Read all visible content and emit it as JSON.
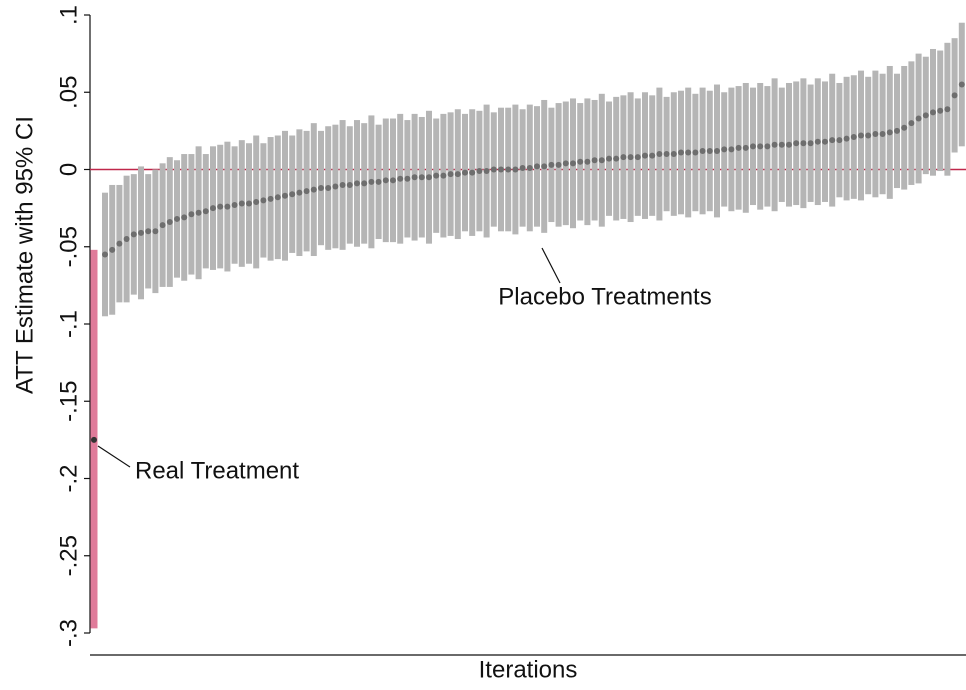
{
  "chart_data": {
    "type": "errorbar",
    "ylabel": "ATT Estimate with 95% CI",
    "xlabel": "Iterations",
    "ylim": [
      -0.3,
      0.1
    ],
    "yticks": [
      {
        "value": 0.1,
        "label": ".1"
      },
      {
        "value": 0.05,
        "label": ".05"
      },
      0,
      {
        "value": -0.05,
        "label": "-.05"
      },
      {
        "value": -0.1,
        "label": "-.1"
      },
      {
        "value": -0.15,
        "label": "-.15"
      },
      {
        "value": -0.2,
        "label": "-.2"
      },
      {
        "value": -0.25,
        "label": "-.25"
      },
      {
        "value": -0.3,
        "label": "-.3"
      }
    ],
    "reference_line": {
      "value": 0,
      "color": "#c0284b"
    },
    "series": [
      {
        "name": "Real Treatment",
        "color": "#333333",
        "bar_color": "#e07b9a",
        "values": [
          -0.175
        ],
        "lower": [
          -0.297
        ],
        "upper": [
          -0.052
        ]
      },
      {
        "name": "Placebo Treatments",
        "color": "#6e6e6e",
        "bar_color": "#b5b5b5",
        "values": [
          -0.055,
          -0.052,
          -0.048,
          -0.045,
          -0.042,
          -0.041,
          -0.04,
          -0.04,
          -0.036,
          -0.034,
          -0.032,
          -0.031,
          -0.029,
          -0.028,
          -0.027,
          -0.025,
          -0.024,
          -0.024,
          -0.023,
          -0.022,
          -0.022,
          -0.021,
          -0.02,
          -0.019,
          -0.018,
          -0.017,
          -0.016,
          -0.015,
          -0.014,
          -0.013,
          -0.012,
          -0.012,
          -0.011,
          -0.01,
          -0.01,
          -0.009,
          -0.009,
          -0.008,
          -0.008,
          -0.007,
          -0.007,
          -0.006,
          -0.006,
          -0.005,
          -0.005,
          -0.005,
          -0.004,
          -0.004,
          -0.003,
          -0.003,
          -0.002,
          -0.002,
          -0.001,
          -0.001,
          0.0,
          0.0,
          0.0,
          0.0,
          0.001,
          0.001,
          0.002,
          0.002,
          0.003,
          0.003,
          0.004,
          0.004,
          0.005,
          0.005,
          0.006,
          0.006,
          0.007,
          0.007,
          0.008,
          0.008,
          0.008,
          0.009,
          0.009,
          0.01,
          0.01,
          0.01,
          0.011,
          0.011,
          0.011,
          0.012,
          0.012,
          0.012,
          0.013,
          0.013,
          0.014,
          0.014,
          0.015,
          0.015,
          0.015,
          0.016,
          0.016,
          0.016,
          0.017,
          0.017,
          0.017,
          0.018,
          0.018,
          0.019,
          0.019,
          0.02,
          0.021,
          0.022,
          0.022,
          0.023,
          0.023,
          0.024,
          0.025,
          0.027,
          0.03,
          0.033,
          0.035,
          0.037,
          0.038,
          0.039,
          0.048,
          0.055
        ],
        "lower": [
          -0.095,
          -0.094,
          -0.086,
          -0.086,
          -0.081,
          -0.084,
          -0.077,
          -0.08,
          -0.076,
          -0.076,
          -0.07,
          -0.072,
          -0.068,
          -0.071,
          -0.064,
          -0.065,
          -0.064,
          -0.066,
          -0.061,
          -0.063,
          -0.061,
          -0.064,
          -0.057,
          -0.059,
          -0.058,
          -0.059,
          -0.054,
          -0.056,
          -0.053,
          -0.056,
          -0.049,
          -0.052,
          -0.051,
          -0.052,
          -0.048,
          -0.05,
          -0.048,
          -0.051,
          -0.045,
          -0.047,
          -0.047,
          -0.048,
          -0.044,
          -0.046,
          -0.044,
          -0.048,
          -0.041,
          -0.044,
          -0.043,
          -0.045,
          -0.04,
          -0.043,
          -0.04,
          -0.044,
          -0.037,
          -0.04,
          -0.04,
          -0.042,
          -0.037,
          -0.04,
          -0.037,
          -0.041,
          -0.034,
          -0.037,
          -0.036,
          -0.038,
          -0.033,
          -0.036,
          -0.033,
          -0.037,
          -0.03,
          -0.033,
          -0.032,
          -0.034,
          -0.03,
          -0.032,
          -0.03,
          -0.033,
          -0.027,
          -0.03,
          -0.029,
          -0.031,
          -0.027,
          -0.029,
          -0.027,
          -0.031,
          -0.024,
          -0.027,
          -0.026,
          -0.028,
          -0.023,
          -0.026,
          -0.024,
          -0.027,
          -0.021,
          -0.024,
          -0.023,
          -0.025,
          -0.021,
          -0.023,
          -0.021,
          -0.024,
          -0.018,
          -0.02,
          -0.019,
          -0.02,
          -0.016,
          -0.018,
          -0.016,
          -0.019,
          -0.012,
          -0.013,
          -0.01,
          -0.009,
          -0.003,
          -0.004,
          -0.001,
          -0.004,
          0.011,
          0.015
        ],
        "upper": [
          -0.015,
          -0.01,
          -0.01,
          -0.004,
          -0.003,
          0.002,
          -0.003,
          0.0,
          0.004,
          0.008,
          0.006,
          0.01,
          0.01,
          0.015,
          0.01,
          0.015,
          0.016,
          0.018,
          0.015,
          0.019,
          0.017,
          0.022,
          0.017,
          0.021,
          0.022,
          0.025,
          0.022,
          0.026,
          0.025,
          0.03,
          0.025,
          0.028,
          0.029,
          0.032,
          0.028,
          0.032,
          0.03,
          0.035,
          0.029,
          0.033,
          0.033,
          0.036,
          0.032,
          0.036,
          0.034,
          0.038,
          0.033,
          0.036,
          0.037,
          0.039,
          0.036,
          0.039,
          0.038,
          0.042,
          0.037,
          0.04,
          0.04,
          0.042,
          0.039,
          0.042,
          0.041,
          0.045,
          0.04,
          0.043,
          0.044,
          0.046,
          0.043,
          0.046,
          0.045,
          0.049,
          0.044,
          0.047,
          0.048,
          0.05,
          0.046,
          0.05,
          0.048,
          0.053,
          0.047,
          0.05,
          0.051,
          0.053,
          0.049,
          0.053,
          0.051,
          0.055,
          0.05,
          0.053,
          0.054,
          0.056,
          0.053,
          0.056,
          0.054,
          0.059,
          0.053,
          0.056,
          0.057,
          0.059,
          0.055,
          0.059,
          0.057,
          0.062,
          0.056,
          0.06,
          0.061,
          0.064,
          0.06,
          0.064,
          0.062,
          0.067,
          0.062,
          0.067,
          0.07,
          0.075,
          0.073,
          0.078,
          0.077,
          0.082,
          0.085,
          0.095
        ]
      }
    ]
  }
}
